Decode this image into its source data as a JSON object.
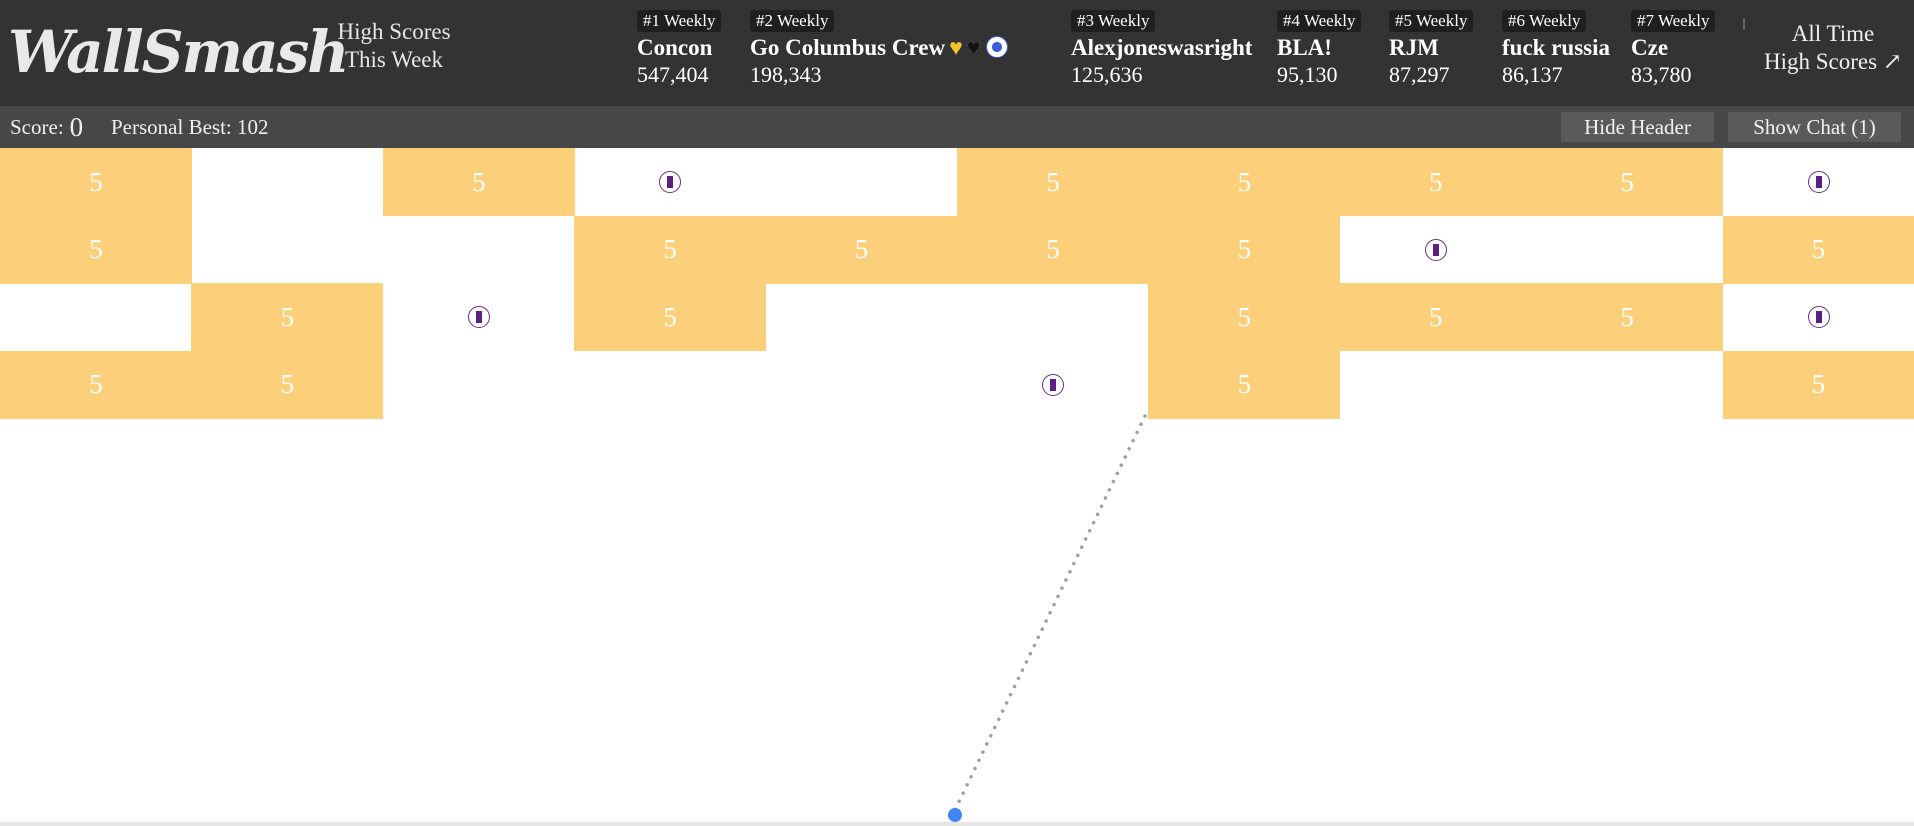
{
  "header": {
    "logo_text": "WallSmash",
    "weekly_title_line1": "High Scores",
    "weekly_title_line2": "This Week",
    "weekly_scores": [
      {
        "rank": "#1 Weekly",
        "name": "Concon",
        "score": "547,404"
      },
      {
        "rank": "#2 Weekly",
        "name": "Go Columbus Crew",
        "score": "198,343",
        "icons": [
          "yellow-heart-icon",
          "black-heart-icon",
          "soccer-ball-icon"
        ]
      },
      {
        "rank": "#3 Weekly",
        "name": "Alexjoneswasright",
        "score": "125,636"
      },
      {
        "rank": "#4 Weekly",
        "name": "BLA!",
        "score": "95,130"
      },
      {
        "rank": "#5 Weekly",
        "name": "RJM",
        "score": "87,297"
      },
      {
        "rank": "#6 Weekly",
        "name": "fuck russia",
        "score": "86,137"
      },
      {
        "rank": "#7 Weekly",
        "name": "Cze",
        "score": "83,780"
      }
    ],
    "alltime_line1": "All Time",
    "alltime_line2": "High Scores ↗"
  },
  "subheader": {
    "score_label": "Score:",
    "score_value": "0",
    "personal_best": "Personal Best: 102",
    "hide_header_label": "Hide Header",
    "show_chat_label": "Show Chat (1)"
  },
  "colors": {
    "header_bg": "#333333",
    "subheader_bg": "#474747",
    "brick": "#fcd07a",
    "powerup": "#5b2082",
    "ball": "#4285f4",
    "aim_line": "#9aa0a6"
  },
  "board": {
    "columns": 10,
    "brick_value": "5",
    "rows": [
      [
        "5",
        "",
        "5",
        "P",
        "",
        "5",
        "5",
        "5",
        "5",
        "P"
      ],
      [
        "5",
        "",
        "",
        "5",
        "5",
        "5",
        "5",
        "P",
        "",
        "5"
      ],
      [
        "",
        "5",
        "P",
        "5",
        "",
        "",
        "5",
        "5",
        "5",
        "P"
      ],
      [
        "5",
        "5",
        "",
        "",
        "",
        "P",
        "5",
        "",
        "",
        "5"
      ]
    ]
  }
}
